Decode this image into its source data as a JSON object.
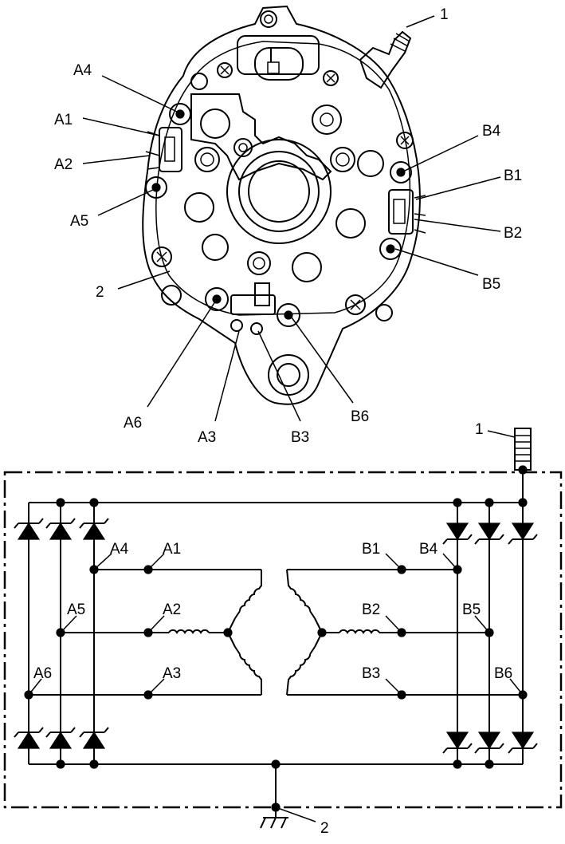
{
  "alternator_view": {
    "callouts": {
      "terminal": "1",
      "ground": "2",
      "A1": "A1",
      "A2": "A2",
      "A3": "A3",
      "A4": "A4",
      "A5": "A5",
      "A6": "A6",
      "B1": "B1",
      "B2": "B2",
      "B3": "B3",
      "B4": "B4",
      "B5": "B5",
      "B6": "B6"
    }
  },
  "schematic": {
    "terminal_label": "1",
    "ground_label": "2",
    "left_nodes": {
      "A1": "A1",
      "A2": "A2",
      "A3": "A3",
      "A4": "A4",
      "A5": "A5",
      "A6": "A6"
    },
    "right_nodes": {
      "B1": "B1",
      "B2": "B2",
      "B3": "B3",
      "B4": "B4",
      "B5": "B5",
      "B6": "B6"
    }
  }
}
